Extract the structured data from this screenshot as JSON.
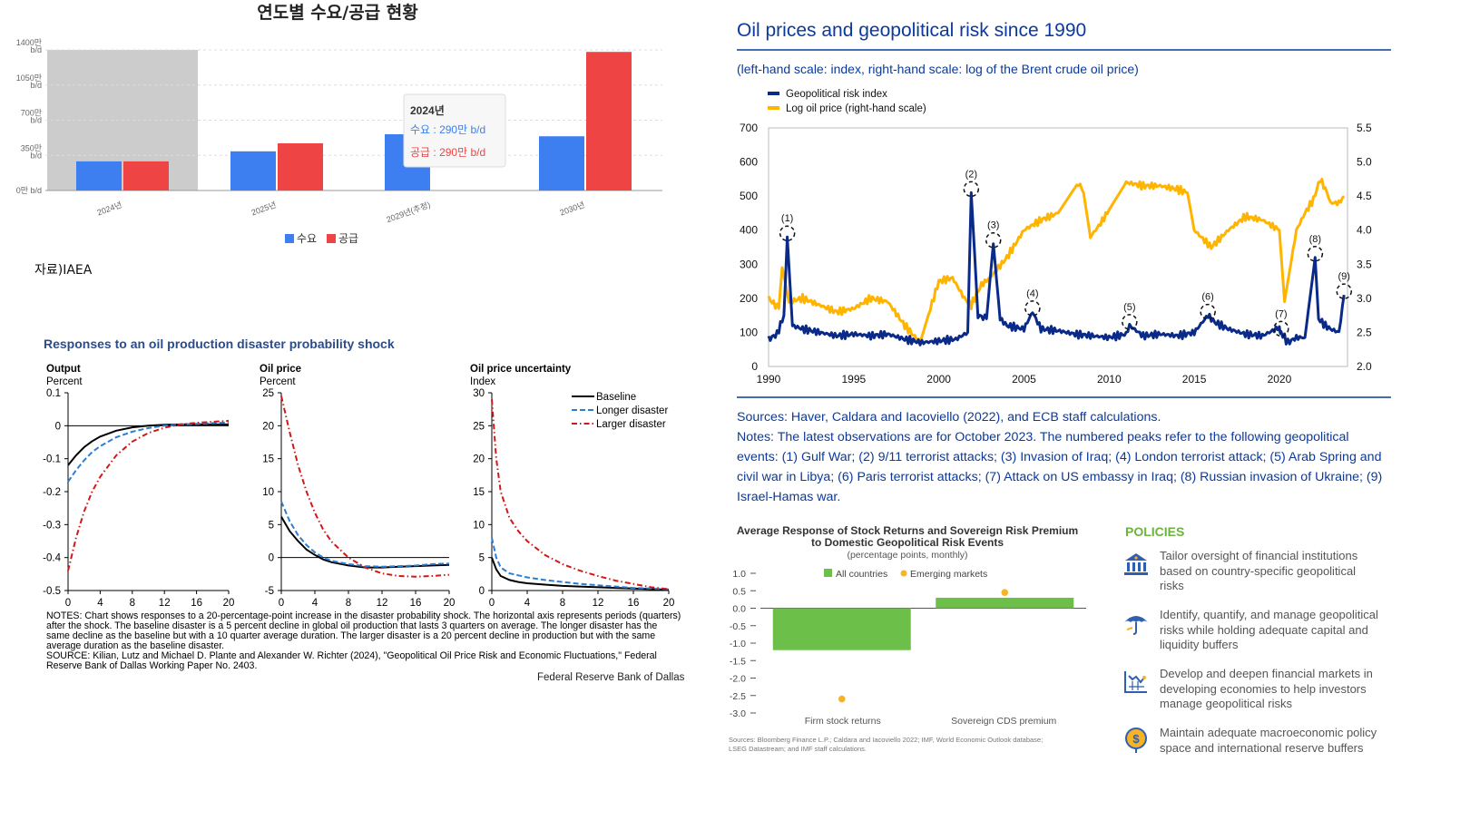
{
  "korean_chart": {
    "title": "연도별 수요/공급 현황",
    "source": "자료)IAEA",
    "y_tick_labels": [
      [
        "0만 b/d"
      ],
      [
        "350만",
        "b/d"
      ],
      [
        "700만",
        "b/d"
      ],
      [
        "1050만",
        "b/d"
      ],
      [
        "1400만",
        "b/d"
      ]
    ],
    "tooltip": {
      "title": "2024년",
      "demand_text": "수요 : 290만 b/d",
      "supply_text": "공급 : 290만 b/d"
    },
    "colors": {
      "demand": "#3d7ff0",
      "supply": "#ef4444",
      "highlight": "#cccccc"
    },
    "chart_data": {
      "type": "bar",
      "title": "연도별 수요/공급 현황",
      "categories": [
        "2024년",
        "2025년",
        "2029년(추정)",
        "2030년"
      ],
      "series": [
        {
          "name": "수요",
          "values": [
            290,
            390,
            560,
            540
          ]
        },
        {
          "name": "공급",
          "values": [
            290,
            470,
            0,
            1380
          ]
        }
      ],
      "ylim": [
        0,
        1400
      ],
      "yticks": [
        0,
        350,
        700,
        1050,
        1400
      ],
      "unit": "만 b/d",
      "highlighted_category": "2024년"
    }
  },
  "ecb_chart": {
    "title": "Oil prices and geopolitical risk since 1990",
    "subtitle": "(left-hand scale: index, right-hand scale: log of the Brent crude oil price)",
    "colors": {
      "gpr": "#0a2a8a",
      "oil": "#ffb400",
      "text": "#0b3a9c"
    },
    "sources": "Sources: Haver, Caldara and Iacoviello (2022), and ECB staff calculations.",
    "notes": "Notes: The latest observations are for October 2023. The numbered peaks refer to the following geopolitical events: (1) Gulf War; (2) 9/11 terrorist attacks; (3) Invasion of Iraq; (4) London terrorist attack; (5) Arab Spring and civil war in Libya; (6) Paris terrorist attacks; (7) Attack on US embassy in Iraq; (8) Russian invasion of Ukraine; (9) Israel-Hamas war.",
    "chart_data": {
      "type": "line",
      "title": "Oil prices and geopolitical risk since 1990",
      "xlim": [
        1990,
        2024
      ],
      "xticks": [
        1990,
        1995,
        2000,
        2005,
        2010,
        2015,
        2020
      ],
      "ylim_left": [
        0,
        700
      ],
      "yticks_left": [
        0,
        100,
        200,
        300,
        400,
        500,
        600,
        700
      ],
      "ylim_right": [
        2.0,
        5.5
      ],
      "yticks_right": [
        "2.0",
        "2.5",
        "3.0",
        "3.5",
        "4.0",
        "4.5",
        "5.0",
        "5.5"
      ],
      "series": [
        {
          "name": "Geopolitical risk index",
          "axis": "left",
          "x": [
            1990,
            1990.5,
            1990.9,
            1991.1,
            1991.4,
            1992,
            1993,
            1994,
            1995,
            1996,
            1997,
            1998,
            1999,
            2000,
            2001,
            2001.7,
            2001.9,
            2002.3,
            2002.8,
            2003.2,
            2003.6,
            2004,
            2005,
            2005.5,
            2006,
            2007,
            2008,
            2009,
            2010,
            2011,
            2011.2,
            2012,
            2013,
            2014,
            2015,
            2015.8,
            2016.2,
            2017,
            2018,
            2019,
            2020,
            2020.1,
            2020.5,
            2021,
            2021.5,
            2022.1,
            2022.3,
            2022.7,
            2023,
            2023.5,
            2023.8
          ],
          "y": [
            80,
            95,
            150,
            380,
            120,
            110,
            100,
            90,
            95,
            90,
            95,
            80,
            70,
            75,
            80,
            100,
            510,
            150,
            140,
            360,
            140,
            120,
            110,
            160,
            110,
            105,
            95,
            90,
            85,
            95,
            120,
            90,
            95,
            90,
            100,
            150,
            130,
            110,
            95,
            90,
            115,
            100,
            70,
            85,
            85,
            320,
            140,
            120,
            110,
            100,
            210
          ]
        },
        {
          "name": "Log oil price (right-hand scale)",
          "axis": "right",
          "x": [
            1990,
            1990.6,
            1990.8,
            1991.2,
            1992,
            1993,
            1994,
            1995,
            1996,
            1997,
            1998,
            1998.9,
            1999.5,
            2000,
            2000.8,
            2001.5,
            2001.9,
            2002.5,
            2003,
            2004,
            2005,
            2006,
            2007,
            2008.2,
            2008.5,
            2008.9,
            2009.5,
            2010,
            2011,
            2012,
            2013,
            2014,
            2014.6,
            2015,
            2016,
            2017,
            2018,
            2019,
            2020,
            2020.3,
            2020.8,
            2021,
            2021.5,
            2022,
            2022.4,
            2022.8,
            2023,
            2023.5,
            2023.8
          ],
          "y": [
            3.0,
            2.85,
            3.45,
            2.95,
            3.0,
            2.9,
            2.8,
            2.85,
            3.0,
            2.95,
            2.6,
            2.35,
            2.85,
            3.25,
            3.3,
            3.0,
            2.9,
            3.2,
            3.3,
            3.6,
            4.0,
            4.15,
            4.25,
            4.7,
            4.55,
            3.9,
            4.1,
            4.3,
            4.7,
            4.65,
            4.65,
            4.6,
            4.55,
            4.0,
            3.75,
            4.0,
            4.2,
            4.15,
            4.0,
            2.95,
            3.7,
            4.0,
            4.25,
            4.45,
            4.75,
            4.55,
            4.4,
            4.4,
            4.5
          ]
        }
      ],
      "peaks": [
        {
          "label": "(1)",
          "x": 1991.1,
          "y": 380
        },
        {
          "label": "(2)",
          "x": 2001.9,
          "y": 510
        },
        {
          "label": "(3)",
          "x": 2003.2,
          "y": 360
        },
        {
          "label": "(4)",
          "x": 2005.5,
          "y": 160
        },
        {
          "label": "(5)",
          "x": 2011.2,
          "y": 120
        },
        {
          "label": "(6)",
          "x": 2015.8,
          "y": 150
        },
        {
          "label": "(7)",
          "x": 2020.1,
          "y": 100
        },
        {
          "label": "(8)",
          "x": 2022.1,
          "y": 320
        },
        {
          "label": "(9)",
          "x": 2023.8,
          "y": 210
        }
      ]
    }
  },
  "dallas_chart": {
    "title": "Responses to an oil production disaster probability shock",
    "credit": "Federal Reserve Bank of Dallas",
    "notes": "NOTES: Chart shows responses to a 20-percentage-point increase in the disaster probability shock. The horizontal axis represents periods (quarters) after the shock. The baseline disaster is a 5 percent decline in global oil production that lasts 3 quarters on average. The longer disaster has the same decline as the baseline but with a 10 quarter average duration. The larger disaster is a 20 percent decline in production but with the same average duration as the baseline disaster.",
    "source": "SOURCE: Kilian, Lutz and Michael D. Plante and Alexander W. Richter (2024), \"Geopolitical Oil Price Risk and Economic Fluctuations,\" Federal Reserve Bank of Dallas Working Paper No. 2403.",
    "legend": [
      "Baseline",
      "Longer disaster",
      "Larger disaster"
    ],
    "colors": {
      "baseline": "#000000",
      "longer": "#2a7fd4",
      "larger": "#d01818"
    },
    "chart_data": [
      {
        "type": "line",
        "title": "Output",
        "ylabel": "Percent",
        "xlim": [
          0,
          20
        ],
        "xticks": [
          0,
          4,
          8,
          12,
          16,
          20
        ],
        "ylim": [
          -0.5,
          0.1
        ],
        "yticks": [
          "0.1",
          "0",
          "-0.1",
          "-0.2",
          "-0.3",
          "-0.4",
          "-0.5"
        ],
        "x": [
          0,
          1,
          2,
          3,
          4,
          6,
          8,
          10,
          12,
          14,
          16,
          18,
          20
        ],
        "series": [
          {
            "name": "Baseline",
            "values": [
              -0.12,
              -0.09,
              -0.065,
              -0.047,
              -0.033,
              -0.015,
              -0.005,
              0.0,
              0.003,
              0.004,
              0.004,
              0.004,
              0.004
            ]
          },
          {
            "name": "Longer disaster",
            "values": [
              -0.17,
              -0.135,
              -0.105,
              -0.08,
              -0.062,
              -0.035,
              -0.018,
              -0.007,
              0.0,
              0.004,
              0.006,
              0.008,
              0.01
            ]
          },
          {
            "name": "Larger disaster",
            "values": [
              -0.44,
              -0.34,
              -0.26,
              -0.2,
              -0.155,
              -0.09,
              -0.048,
              -0.022,
              -0.006,
              0.004,
              0.009,
              0.012,
              0.015
            ]
          }
        ]
      },
      {
        "type": "line",
        "title": "Oil price",
        "ylabel": "Percent",
        "xlim": [
          0,
          20
        ],
        "xticks": [
          0,
          4,
          8,
          12,
          16,
          20
        ],
        "ylim": [
          -5,
          25
        ],
        "yticks": [
          "25",
          "20",
          "15",
          "10",
          "5",
          "0",
          "-5"
        ],
        "x": [
          0,
          1,
          2,
          3,
          4,
          5,
          6,
          8,
          10,
          12,
          14,
          16,
          18,
          20
        ],
        "series": [
          {
            "name": "Baseline",
            "values": [
              6.2,
              4.0,
              2.5,
              1.2,
              0.4,
              -0.3,
              -0.7,
              -1.2,
              -1.5,
              -1.5,
              -1.4,
              -1.3,
              -1.2,
              -1.1
            ]
          },
          {
            "name": "Longer disaster",
            "values": [
              8.5,
              5.5,
              3.4,
              1.9,
              0.8,
              0.0,
              -0.5,
              -1.0,
              -1.3,
              -1.4,
              -1.3,
              -1.2,
              -1.0,
              -0.9
            ]
          },
          {
            "name": "Larger disaster",
            "values": [
              24.5,
              19.0,
              14.0,
              10.0,
              6.8,
              4.2,
              2.4,
              0.0,
              -1.5,
              -2.4,
              -2.8,
              -2.9,
              -2.8,
              -2.6
            ]
          }
        ]
      },
      {
        "type": "line",
        "title": "Oil price uncertainty",
        "ylabel": "Index",
        "xlim": [
          0,
          20
        ],
        "xticks": [
          0,
          4,
          8,
          12,
          16,
          20
        ],
        "ylim": [
          0,
          30
        ],
        "yticks": [
          "30",
          "25",
          "20",
          "15",
          "10",
          "5",
          "0"
        ],
        "x": [
          0,
          0.5,
          1,
          2,
          3,
          4,
          6,
          8,
          10,
          12,
          14,
          16,
          18,
          20
        ],
        "series": [
          {
            "name": "Baseline",
            "values": [
              5.0,
              3.2,
              2.2,
              1.6,
              1.3,
              1.1,
              0.9,
              0.7,
              0.6,
              0.5,
              0.4,
              0.3,
              0.2,
              0.1
            ]
          },
          {
            "name": "Longer disaster",
            "values": [
              8.0,
              5.0,
              3.5,
              2.6,
              2.3,
              2.0,
              1.6,
              1.3,
              1.0,
              0.8,
              0.6,
              0.4,
              0.3,
              0.2
            ]
          },
          {
            "name": "Larger disaster",
            "values": [
              29.0,
              20.0,
              15.0,
              11.0,
              9.0,
              7.5,
              5.4,
              4.0,
              3.0,
              2.2,
              1.5,
              1.0,
              0.5,
              0.2
            ]
          }
        ]
      }
    ]
  },
  "imf_chart": {
    "title_line1": "Average Response of Stock Returns and Sovereign Risk Premium",
    "title_line2": "to Domestic Geopolitical Risk Events",
    "subtitle": "(percentage points, monthly)",
    "source_line1": "Sources: Bloomberg Finance L.P.; Caldara and Iacoviello 2022; IMF, World Economic Outlook database;",
    "source_line2": "LSEG Datastream; and IMF staff calculations.",
    "colors": {
      "bar": "#6cc04a",
      "dot": "#f5b325"
    },
    "chart_data": {
      "type": "bar",
      "title": "Average Response of Stock Returns and Sovereign Risk Premium to Domestic Geopolitical Risk Events",
      "categories": [
        "Firm stock returns",
        "Sovereign CDS premium"
      ],
      "series": [
        {
          "name": "All countries",
          "values": [
            -1.2,
            0.3
          ]
        },
        {
          "name": "Emerging markets",
          "values": [
            -2.6,
            0.45
          ]
        }
      ],
      "ylim": [
        -3.0,
        1.0
      ],
      "yticks": [
        "1.0",
        "0.5",
        "0.0",
        "-0.5",
        "-1.0",
        "-1.5",
        "-2.0",
        "-2.5",
        "-3.0"
      ]
    }
  },
  "policies": {
    "heading": "POLICIES",
    "items": [
      {
        "text": "Tailor oversight of financial institutions based on country-specific geopolitical risks"
      },
      {
        "text": "Identify, quantify, and manage geopolitical risks while holding adequate capital and liquidity buffers"
      },
      {
        "text": "Develop and deepen financial markets in developing economies to help investors manage geopolitical risks"
      },
      {
        "text": "Maintain adequate macroeconomic policy space and international reserve buffers"
      }
    ]
  }
}
